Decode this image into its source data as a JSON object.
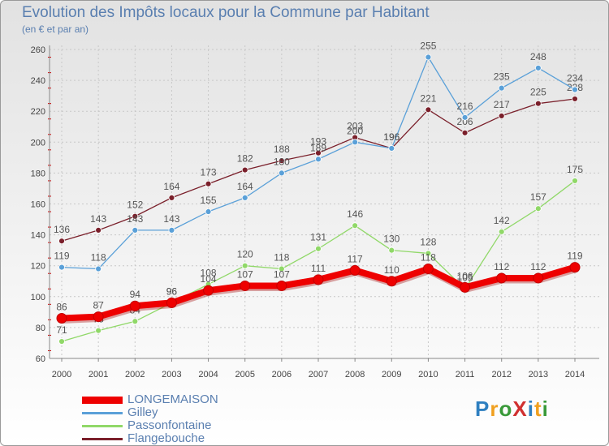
{
  "title": "Evolution des Impôts locaux pour la Commune par Habitant",
  "subtitle": "(en € et par an)",
  "logo": {
    "text": "ProXiti",
    "colors": [
      "#2e7fc0",
      "#f0a020",
      "#3a9a3a",
      "#d03030",
      "#2e7fc0",
      "#f0a020",
      "#3a9a3a"
    ]
  },
  "chart_data": {
    "type": "line",
    "title": "Evolution des Impôts locaux pour la Commune par Habitant",
    "ylabel": "(en € et par an)",
    "xlabel": "",
    "ylim": [
      60,
      260
    ],
    "yticks": [
      60,
      80,
      100,
      120,
      140,
      160,
      180,
      200,
      220,
      240,
      260
    ],
    "grid": true,
    "x": [
      "2000",
      "2001",
      "2002",
      "2003",
      "2004",
      "2005",
      "2006",
      "2007",
      "2008",
      "2009",
      "2010",
      "2011",
      "2012",
      "2013",
      "2014"
    ],
    "series": [
      {
        "name": "Flangebouche",
        "color": "#7a1f2a",
        "values": [
          136,
          143,
          152,
          164,
          173,
          182,
          188,
          193,
          203,
          196,
          221,
          206,
          217,
          225,
          228
        ],
        "labels": [
          "136",
          "143",
          "152",
          "164",
          "173",
          "182",
          "188",
          "193",
          "203",
          "196",
          "221",
          "206",
          "217",
          "225",
          "228"
        ]
      },
      {
        "name": "Gilley",
        "color": "#5aa0d8",
        "values": [
          119,
          118,
          143,
          143,
          155,
          164,
          180,
          189,
          200,
          196,
          255,
          216,
          235,
          248,
          234
        ],
        "labels": [
          "119",
          "118",
          "143",
          "143",
          "155",
          "164",
          "180",
          "189",
          "200",
          "196",
          "255",
          "216",
          "235",
          "248",
          "234"
        ]
      },
      {
        "name": "Passonfontaine",
        "color": "#90d868",
        "values": [
          71,
          78,
          84,
          96,
          108,
          120,
          118,
          131,
          146,
          130,
          128,
          105,
          142,
          157,
          175
        ],
        "labels": [
          "71",
          "78",
          "84",
          "96",
          "108",
          "120",
          "118",
          "131",
          "146",
          "130",
          "128",
          "105",
          "142",
          "157",
          "175"
        ]
      },
      {
        "name": "LONGEMAISON",
        "color": "#ee0000",
        "values": [
          86,
          87,
          94,
          96,
          104,
          107,
          107,
          111,
          117,
          110,
          118,
          106,
          112,
          112,
          119
        ],
        "labels": [
          "86",
          "87",
          "94",
          "96",
          "104",
          "107",
          "107",
          "111",
          "117",
          "110",
          "118",
          "106",
          "112",
          "112",
          "119"
        ]
      }
    ],
    "legend": [
      "LONGEMAISON",
      "Gilley",
      "Passonfontaine",
      "Flangebouche"
    ],
    "legend_position": "bottom-left"
  }
}
